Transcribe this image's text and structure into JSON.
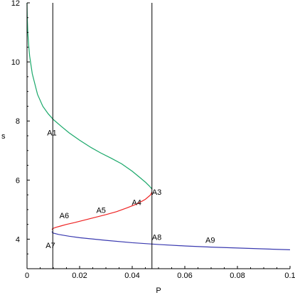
{
  "chart_data": {
    "type": "line",
    "title": "",
    "xlabel": "P",
    "ylabel": "s",
    "xlim": [
      0,
      0.1
    ],
    "ylim": [
      3.0,
      12.0
    ],
    "xticks": [
      0,
      0.02,
      0.04,
      0.06,
      0.08,
      0.1
    ],
    "xtick_labels": [
      "0",
      "0.02",
      "0.04",
      "0.06",
      "0.08",
      "0.1"
    ],
    "yticks": [
      4,
      6,
      8,
      10,
      12
    ],
    "ytick_labels": [
      "4",
      "6",
      "8",
      "10",
      "12"
    ],
    "grid": false,
    "legend": "none",
    "series": [
      {
        "color": "#1aa86a",
        "x": [
          0.0,
          0.0001,
          0.0003,
          0.0006,
          0.001,
          0.002,
          0.004,
          0.006,
          0.008,
          0.01,
          0.013,
          0.016,
          0.02,
          0.024,
          0.028,
          0.032,
          0.036,
          0.04,
          0.043,
          0.045,
          0.0465,
          0.0475
        ],
        "y": [
          12.0,
          11.5,
          11.0,
          10.6,
          10.2,
          9.6,
          8.9,
          8.5,
          8.25,
          8.05,
          7.82,
          7.6,
          7.35,
          7.12,
          6.92,
          6.74,
          6.55,
          6.3,
          6.08,
          5.93,
          5.8,
          5.7
        ]
      },
      {
        "color": "#ee2222",
        "x": [
          0.0475,
          0.047,
          0.045,
          0.042,
          0.038,
          0.034,
          0.03,
          0.026,
          0.022,
          0.018,
          0.015,
          0.013,
          0.011,
          0.0098,
          0.0095
        ],
        "y": [
          5.6,
          5.5,
          5.35,
          5.2,
          5.06,
          4.93,
          4.83,
          4.74,
          4.65,
          4.56,
          4.5,
          4.45,
          4.4,
          4.36,
          4.32
        ]
      },
      {
        "color": "#3a3ab0",
        "x": [
          0.0095,
          0.0098,
          0.012,
          0.016,
          0.02,
          0.03,
          0.04,
          0.05,
          0.06,
          0.07,
          0.08,
          0.09,
          0.1
        ],
        "y": [
          4.26,
          4.21,
          4.16,
          4.1,
          4.05,
          3.96,
          3.88,
          3.82,
          3.77,
          3.73,
          3.7,
          3.67,
          3.64
        ]
      }
    ],
    "vlines": [
      0.0098,
      0.0475
    ],
    "annotations": [
      {
        "text": "A1",
        "x": 0.0098,
        "y": 7.7
      },
      {
        "text": "A3",
        "x": 0.0475,
        "y": 5.6
      },
      {
        "text": "A4",
        "x": 0.042,
        "y": 5.25
      },
      {
        "text": "A5",
        "x": 0.0285,
        "y": 4.98
      },
      {
        "text": "A6",
        "x": 0.0145,
        "y": 4.8
      },
      {
        "text": "A7",
        "x": 0.0098,
        "y": 3.8
      },
      {
        "text": "A8",
        "x": 0.0475,
        "y": 4.07
      },
      {
        "text": "A9",
        "x": 0.07,
        "y": 3.97
      }
    ]
  }
}
